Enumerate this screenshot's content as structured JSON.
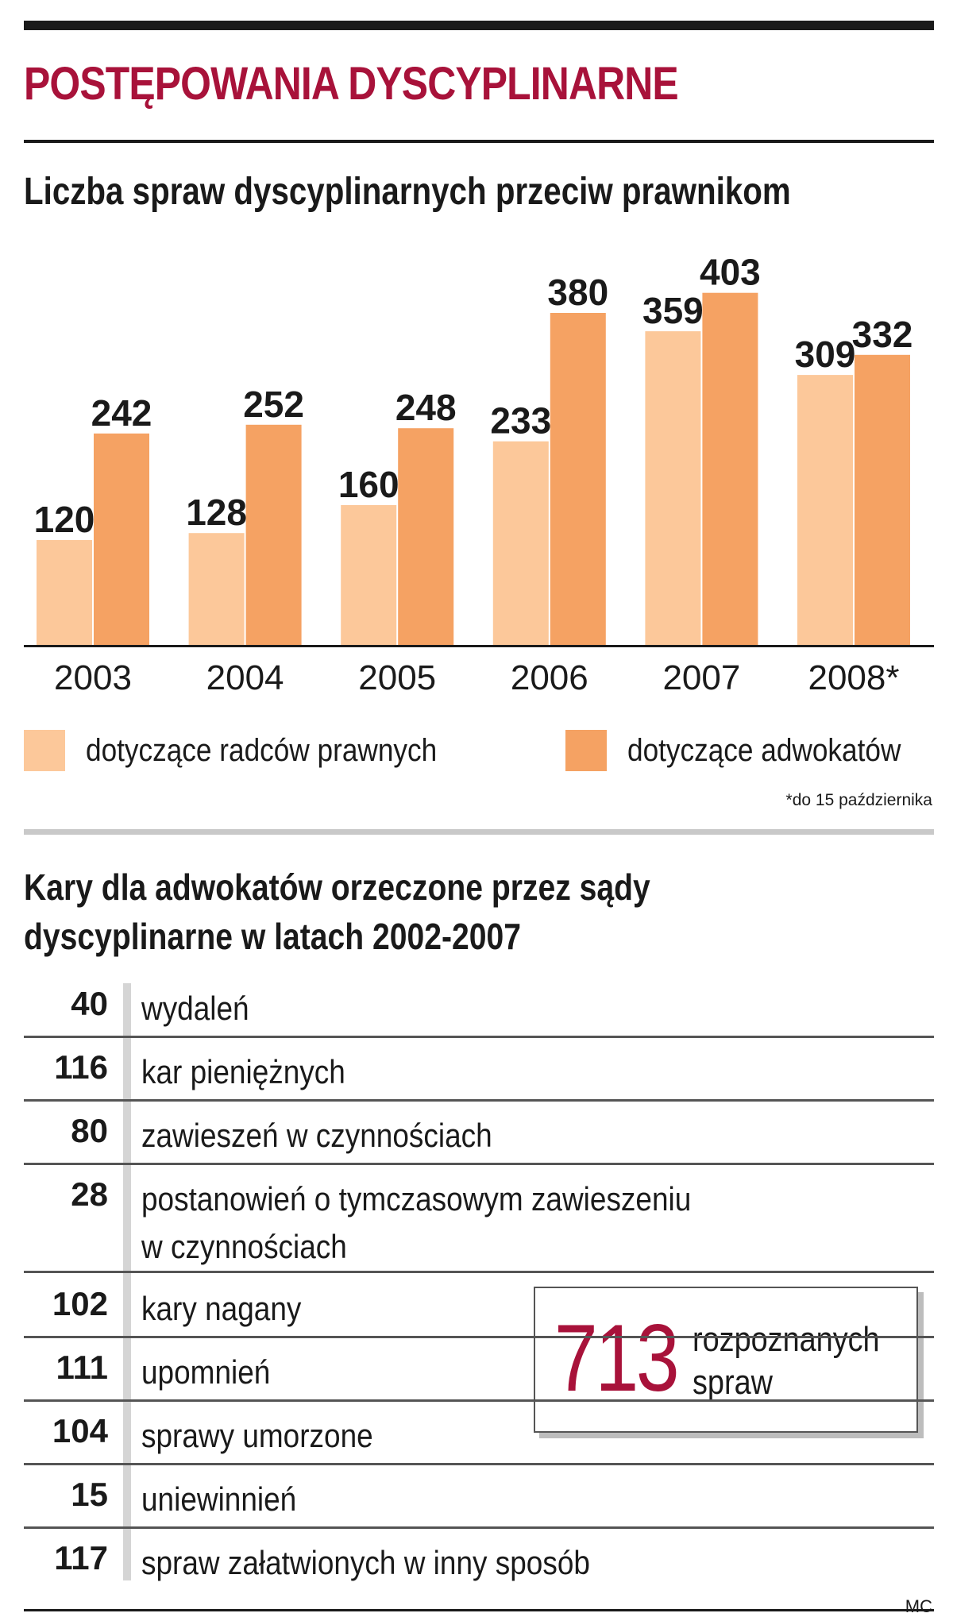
{
  "title": "POSTĘPOWANIA DYSCYPLINARNE",
  "colors": {
    "accent": "#a8123a",
    "radcy": "#fcc89a",
    "adwokaci": "#f5a263"
  },
  "chart_data": {
    "type": "bar",
    "title": "Liczba spraw dyscyplinarnych przeciw prawnikom",
    "categories": [
      "2003",
      "2004",
      "2005",
      "2006",
      "2007",
      "2008*"
    ],
    "series": [
      {
        "name": "dotyczące radców prawnych",
        "color": "#fcc89a",
        "values": [
          120,
          128,
          160,
          233,
          359,
          309
        ]
      },
      {
        "name": "dotyczące adwokatów",
        "color": "#f5a263",
        "values": [
          242,
          252,
          248,
          380,
          403,
          332
        ]
      }
    ],
    "legend_position": "bottom",
    "grid": false,
    "footnote": "*do 15 października"
  },
  "section2": {
    "title": "Kary dla adwokatów orzeczone przez sądy\ndyscyplinarne w latach 2002-2007",
    "rows": [
      {
        "value": "40",
        "label": "wydaleń"
      },
      {
        "value": "116",
        "label": "kar pieniężnych"
      },
      {
        "value": "80",
        "label": "zawieszeń w czynnościach"
      },
      {
        "value": "28",
        "label": "postanowień o tymczasowym zawieszeniu\nw czynnościach"
      },
      {
        "value": "102",
        "label": "kary nagany"
      },
      {
        "value": "111",
        "label": "upomnień"
      },
      {
        "value": "104",
        "label": "sprawy umorzone"
      },
      {
        "value": "15",
        "label": "uniewinnień"
      },
      {
        "value": "117",
        "label": "spraw załatwionych w inny sposób"
      }
    ],
    "total": {
      "value": "713",
      "label": "rozpoznanych\nspraw"
    }
  },
  "credit": "MC"
}
